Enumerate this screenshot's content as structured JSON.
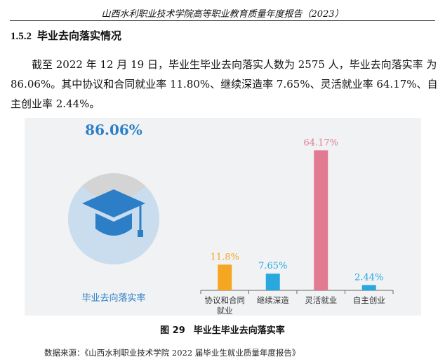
{
  "header": {
    "running_title": "山西水利职业技术学院高等职业教育质量年度报告（2023）"
  },
  "section": {
    "number": "1.5.2",
    "title": "毕业去向落实情况"
  },
  "paragraph": {
    "lines": [
      "截至 2022 年 12 月 19 日，毕业生毕业去向落实人数为 2575 人，毕业去向落实率 为",
      "86.06%。其中协议和合同就业率 11.80%、继续深造率 7.65%、灵活就业率 64.17%、自",
      "主创业率 2.44%。"
    ]
  },
  "figure": {
    "number": "图 29",
    "title": "毕业生毕业去向落实率",
    "source": "数据来源：《山西水利职业技术学院 2022 届毕业生就业质量年度报告》"
  },
  "chart_data": [
    {
      "type": "gauge",
      "value_label": "86.06%",
      "value": 86.06,
      "label": "毕业去向落实率",
      "icon": "graduation-cap-icon",
      "colors": {
        "fill": "#c9ddef",
        "empty": "#d4d4d4",
        "icon": "#2c7fc7",
        "value_text": "#2c7fc7",
        "label_text": "#2c7fc7"
      }
    },
    {
      "type": "bar",
      "categories": [
        "协议和合同就业",
        "继续深造",
        "灵活就业",
        "自主创业"
      ],
      "category_lines": [
        [
          "协议和合同",
          "就业"
        ],
        [
          "继续深造"
        ],
        [
          "灵活就业"
        ],
        [
          "自主创业"
        ]
      ],
      "values": [
        11.8,
        7.65,
        64.17,
        2.44
      ],
      "data_labels": [
        "11.8%",
        "7.65%",
        "64.17%",
        "2.44%"
      ],
      "colors": [
        "#f5a623",
        "#29a8e0",
        "#e27a91",
        "#29a8e0"
      ],
      "ylim": [
        0,
        72
      ],
      "grid": false,
      "legend": "none",
      "title": "",
      "xlabel": "",
      "ylabel": ""
    }
  ]
}
